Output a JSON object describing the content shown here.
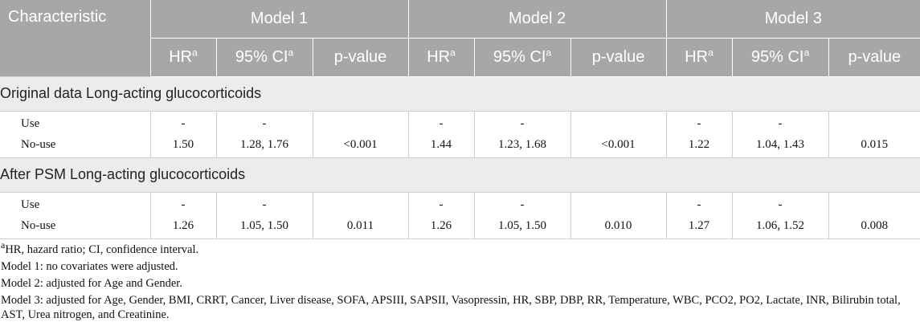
{
  "table": {
    "header": {
      "characteristic": "Characteristic",
      "models": [
        "Model 1",
        "Model 2",
        "Model 3"
      ],
      "sub_columns": [
        {
          "label": "HR",
          "sup": "a"
        },
        {
          "label": "95% CI",
          "sup": "a"
        },
        {
          "label": "p-value",
          "sup": ""
        }
      ]
    },
    "sections": [
      {
        "title": "Original data Long-acting glucocorticoids",
        "rows_labels": [
          "Use",
          "No-use"
        ],
        "use": [
          "-",
          "-",
          "",
          "-",
          "-",
          "",
          "-",
          "-",
          ""
        ],
        "nouse": [
          "1.50",
          "1.28, 1.76",
          "<0.001",
          "1.44",
          "1.23, 1.68",
          "<0.001",
          "1.22",
          "1.04, 1.43",
          "0.015"
        ]
      },
      {
        "title": "After PSM Long-acting glucocorticoids",
        "rows_labels": [
          "Use",
          "No-use"
        ],
        "use": [
          "-",
          "-",
          "",
          "-",
          "-",
          "",
          "-",
          "-",
          ""
        ],
        "nouse": [
          "1.26",
          "1.05, 1.50",
          "0.011",
          "1.26",
          "1.05, 1.50",
          "0.010",
          "1.27",
          "1.06, 1.52",
          "0.008"
        ]
      }
    ]
  },
  "notes": {
    "footnote_sup": "a",
    "footnote": "HR, hazard ratio; CI, confidence interval.",
    "model1": "Model 1: no covariates were adjusted.",
    "model2": "Model 2: adjusted for Age and Gender.",
    "model3": "Model 3: adjusted for Age, Gender, BMI, CRRT, Cancer, Liver disease, SOFA, APSIII, SAPSII, Vasopressin, HR, SBP, DBP, RR, Temperature, WBC, PCO2, PO2, Lactate, INR, Bilirubin total, AST, Urea nitrogen, and Creatinine."
  }
}
